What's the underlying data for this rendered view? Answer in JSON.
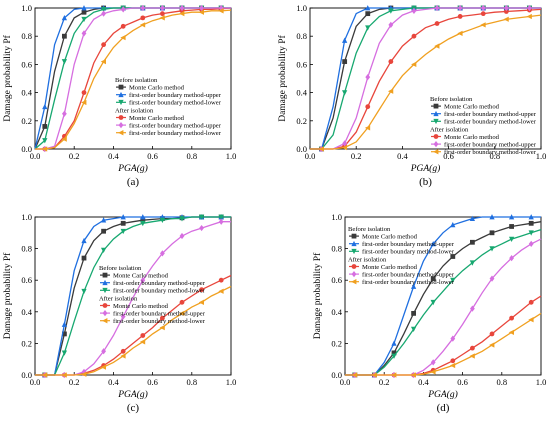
{
  "figure": {
    "panels": [
      {
        "label": "(a)"
      },
      {
        "label": "(b)"
      },
      {
        "label": "(c)"
      },
      {
        "label": "(d)"
      }
    ]
  },
  "chart_data": [
    {
      "type": "line",
      "panel": "(a)",
      "xlabel": "PGA(g)",
      "ylabel": "Damage probability Pf",
      "xlim": [
        0.0,
        1.0
      ],
      "ylim": [
        0.0,
        1.0
      ],
      "xticks": [
        "0.0",
        "0.2",
        "0.4",
        "0.6",
        "0.8",
        "1.0"
      ],
      "yticks": [
        "0.0",
        "0.2",
        "0.4",
        "0.6",
        "0.8",
        "1.0"
      ],
      "legend_position": "center-right",
      "legend_groups": [
        {
          "title": "Before isolation",
          "series": [
            0,
            1,
            2
          ]
        },
        {
          "title": "After isolation",
          "series": [
            3,
            4,
            5
          ]
        }
      ],
      "x": [
        0.0,
        0.05,
        0.1,
        0.15,
        0.2,
        0.25,
        0.3,
        0.35,
        0.4,
        0.45,
        0.5,
        0.55,
        0.6,
        0.65,
        0.7,
        0.75,
        0.8,
        0.85,
        0.9,
        0.95,
        1.0
      ],
      "series": [
        {
          "name": "Monte Carlo method",
          "color": "#3a3a3a",
          "marker": "square",
          "values": [
            0.0,
            0.16,
            0.55,
            0.8,
            0.93,
            0.97,
            0.99,
            1.0,
            1.0,
            1.0,
            1.0,
            1.0,
            1.0,
            1.0,
            1.0,
            1.0,
            1.0,
            1.0,
            1.0,
            1.0,
            1.0
          ]
        },
        {
          "name": "first-order boundary method-upper",
          "color": "#1f6fe0",
          "marker": "triangle-up",
          "values": [
            0.0,
            0.3,
            0.74,
            0.93,
            0.99,
            1.0,
            1.0,
            1.0,
            1.0,
            1.0,
            1.0,
            1.0,
            1.0,
            1.0,
            1.0,
            1.0,
            1.0,
            1.0,
            1.0,
            1.0,
            1.0
          ]
        },
        {
          "name": "first-order boundary method-lower",
          "color": "#17a870",
          "marker": "triangle-down",
          "values": [
            0.0,
            0.06,
            0.35,
            0.62,
            0.82,
            0.92,
            0.97,
            0.99,
            1.0,
            1.0,
            1.0,
            1.0,
            1.0,
            1.0,
            1.0,
            1.0,
            1.0,
            1.0,
            1.0,
            1.0,
            1.0
          ]
        },
        {
          "name": "Monte Carlo method",
          "color": "#e8463c",
          "marker": "circle",
          "values": [
            0.0,
            0.0,
            0.01,
            0.09,
            0.2,
            0.4,
            0.61,
            0.74,
            0.82,
            0.87,
            0.9,
            0.93,
            0.95,
            0.96,
            0.97,
            0.98,
            0.985,
            0.99,
            0.99,
            0.995,
            1.0
          ]
        },
        {
          "name": "first-order boundary method-upper",
          "color": "#d66ee0",
          "marker": "diamond",
          "values": [
            0.0,
            0.0,
            0.02,
            0.25,
            0.6,
            0.82,
            0.92,
            0.96,
            0.98,
            0.99,
            1.0,
            1.0,
            1.0,
            1.0,
            1.0,
            1.0,
            1.0,
            1.0,
            1.0,
            1.0,
            1.0
          ]
        },
        {
          "name": "first-order boundary method-lower",
          "color": "#f0a020",
          "marker": "triangle-left",
          "values": [
            0.0,
            0.0,
            0.01,
            0.07,
            0.18,
            0.33,
            0.5,
            0.62,
            0.72,
            0.79,
            0.84,
            0.88,
            0.91,
            0.93,
            0.95,
            0.96,
            0.97,
            0.97,
            0.98,
            0.98,
            0.985
          ]
        }
      ]
    },
    {
      "type": "line",
      "panel": "(b)",
      "xlabel": "PGA(g)",
      "ylabel": "Damage probability Pf",
      "xlim": [
        0.0,
        1.0
      ],
      "ylim": [
        0.0,
        1.0
      ],
      "xticks": [
        "0.0",
        "0.2",
        "0.4",
        "0.6",
        "0.8",
        "1.0"
      ],
      "yticks": [
        "0.0",
        "0.2",
        "0.4",
        "0.6",
        "0.8",
        "1.0"
      ],
      "legend_position": "bottom-right",
      "legend_groups": [
        {
          "title": "Before isolation",
          "series": [
            0,
            1,
            2
          ]
        },
        {
          "title": "After isolation",
          "series": [
            3,
            4,
            5
          ]
        }
      ],
      "x": [
        0.0,
        0.05,
        0.1,
        0.15,
        0.2,
        0.25,
        0.3,
        0.35,
        0.4,
        0.45,
        0.5,
        0.55,
        0.6,
        0.65,
        0.7,
        0.75,
        0.8,
        0.85,
        0.9,
        0.95,
        1.0
      ],
      "series": [
        {
          "name": "Monte Carlo method",
          "color": "#3a3a3a",
          "marker": "square",
          "values": [
            0.0,
            0.0,
            0.22,
            0.62,
            0.87,
            0.96,
            0.99,
            1.0,
            1.0,
            1.0,
            1.0,
            1.0,
            1.0,
            1.0,
            1.0,
            1.0,
            1.0,
            1.0,
            1.0,
            1.0,
            1.0
          ]
        },
        {
          "name": "first-order boundary method-upper",
          "color": "#1f6fe0",
          "marker": "triangle-up",
          "values": [
            0.0,
            0.0,
            0.3,
            0.77,
            0.96,
            1.0,
            1.0,
            1.0,
            1.0,
            1.0,
            1.0,
            1.0,
            1.0,
            1.0,
            1.0,
            1.0,
            1.0,
            1.0,
            1.0,
            1.0,
            1.0
          ]
        },
        {
          "name": "first-order boundary method-lower",
          "color": "#17a870",
          "marker": "triangle-down",
          "values": [
            0.0,
            0.0,
            0.1,
            0.4,
            0.68,
            0.86,
            0.94,
            0.98,
            0.99,
            1.0,
            1.0,
            1.0,
            1.0,
            1.0,
            1.0,
            1.0,
            1.0,
            1.0,
            1.0,
            1.0,
            1.0
          ]
        },
        {
          "name": "Monte Carlo method",
          "color": "#e8463c",
          "marker": "circle",
          "values": [
            0.0,
            0.0,
            0.0,
            0.02,
            0.12,
            0.3,
            0.48,
            0.62,
            0.73,
            0.8,
            0.86,
            0.89,
            0.92,
            0.94,
            0.95,
            0.96,
            0.97,
            0.975,
            0.98,
            0.985,
            0.99
          ]
        },
        {
          "name": "first-order boundary method-upper",
          "color": "#d66ee0",
          "marker": "diamond",
          "values": [
            0.0,
            0.0,
            0.0,
            0.04,
            0.22,
            0.51,
            0.75,
            0.88,
            0.95,
            0.98,
            0.99,
            1.0,
            1.0,
            1.0,
            1.0,
            1.0,
            1.0,
            1.0,
            1.0,
            1.0,
            1.0
          ]
        },
        {
          "name": "first-order boundary method-lower",
          "color": "#f0a020",
          "marker": "triangle-left",
          "values": [
            0.0,
            0.0,
            0.0,
            0.01,
            0.05,
            0.15,
            0.28,
            0.41,
            0.52,
            0.6,
            0.67,
            0.73,
            0.78,
            0.82,
            0.85,
            0.88,
            0.9,
            0.92,
            0.93,
            0.94,
            0.95
          ]
        }
      ]
    },
    {
      "type": "line",
      "panel": "(c)",
      "xlabel": "PGA(g)",
      "ylabel": "Damage probability Pf",
      "xlim": [
        0.0,
        1.0
      ],
      "ylim": [
        0.0,
        1.0
      ],
      "xticks": [
        "0.0",
        "0.2",
        "0.4",
        "0.6",
        "0.8",
        "1.0"
      ],
      "yticks": [
        "0.0",
        "0.2",
        "0.4",
        "0.6",
        "0.8",
        "1.0"
      ],
      "legend_position": "center-right",
      "legend_groups": [
        {
          "title": "Before isolation",
          "series": [
            0,
            1,
            2
          ]
        },
        {
          "title": "After isolation",
          "series": [
            3,
            4,
            5
          ]
        }
      ],
      "x": [
        0.0,
        0.05,
        0.1,
        0.15,
        0.2,
        0.25,
        0.3,
        0.35,
        0.4,
        0.45,
        0.5,
        0.55,
        0.6,
        0.65,
        0.7,
        0.75,
        0.8,
        0.85,
        0.9,
        0.95,
        1.0
      ],
      "series": [
        {
          "name": "Monte Carlo method",
          "color": "#3a3a3a",
          "marker": "square",
          "values": [
            0.0,
            0.0,
            0.0,
            0.26,
            0.55,
            0.74,
            0.85,
            0.91,
            0.94,
            0.96,
            0.97,
            0.98,
            0.985,
            0.99,
            0.99,
            0.995,
            1.0,
            1.0,
            1.0,
            1.0,
            1.0
          ]
        },
        {
          "name": "first-order boundary method-upper",
          "color": "#1f6fe0",
          "marker": "triangle-up",
          "values": [
            0.0,
            0.0,
            0.0,
            0.32,
            0.66,
            0.85,
            0.94,
            0.98,
            0.99,
            1.0,
            1.0,
            1.0,
            1.0,
            1.0,
            1.0,
            1.0,
            1.0,
            1.0,
            1.0,
            1.0,
            1.0
          ]
        },
        {
          "name": "first-order boundary method-lower",
          "color": "#17a870",
          "marker": "triangle-down",
          "values": [
            0.0,
            0.0,
            0.0,
            0.14,
            0.34,
            0.53,
            0.68,
            0.79,
            0.86,
            0.91,
            0.94,
            0.96,
            0.97,
            0.98,
            0.99,
            0.99,
            1.0,
            1.0,
            1.0,
            1.0,
            1.0
          ]
        },
        {
          "name": "Monte Carlo method",
          "color": "#e8463c",
          "marker": "circle",
          "values": [
            0.0,
            0.0,
            0.0,
            0.0,
            0.0,
            0.01,
            0.03,
            0.06,
            0.1,
            0.15,
            0.2,
            0.25,
            0.3,
            0.36,
            0.41,
            0.46,
            0.5,
            0.54,
            0.57,
            0.6,
            0.63
          ]
        },
        {
          "name": "first-order boundary method-upper",
          "color": "#d66ee0",
          "marker": "diamond",
          "values": [
            0.0,
            0.0,
            0.0,
            0.0,
            0.0,
            0.02,
            0.07,
            0.15,
            0.25,
            0.37,
            0.49,
            0.6,
            0.69,
            0.77,
            0.83,
            0.88,
            0.91,
            0.93,
            0.95,
            0.97,
            0.97
          ]
        },
        {
          "name": "first-order boundary method-lower",
          "color": "#f0a020",
          "marker": "triangle-left",
          "values": [
            0.0,
            0.0,
            0.0,
            0.0,
            0.0,
            0.005,
            0.02,
            0.05,
            0.08,
            0.12,
            0.17,
            0.21,
            0.26,
            0.3,
            0.35,
            0.39,
            0.43,
            0.46,
            0.5,
            0.53,
            0.56
          ]
        }
      ]
    },
    {
      "type": "line",
      "panel": "(d)",
      "xlabel": "PGA(g)",
      "ylabel": "Damage probability Pf",
      "xlim": [
        0.0,
        1.0
      ],
      "ylim": [
        0.0,
        1.0
      ],
      "xticks": [
        "0.0",
        "0.2",
        "0.4",
        "0.6",
        "0.8",
        "1.0"
      ],
      "yticks": [
        "0.0",
        "0.2",
        "0.4",
        "0.6",
        "0.8",
        "1.0"
      ],
      "legend_position": "top-left",
      "legend_groups": [
        {
          "title": "Before isolation",
          "series": [
            0,
            1,
            2
          ]
        },
        {
          "title": "After isolation",
          "series": [
            3,
            4,
            5
          ]
        }
      ],
      "x": [
        0.0,
        0.05,
        0.1,
        0.15,
        0.2,
        0.25,
        0.3,
        0.35,
        0.4,
        0.45,
        0.5,
        0.55,
        0.6,
        0.65,
        0.7,
        0.75,
        0.8,
        0.85,
        0.9,
        0.95,
        1.0
      ],
      "series": [
        {
          "name": "Monte Carlo method",
          "color": "#3a3a3a",
          "marker": "square",
          "values": [
            0.0,
            0.0,
            0.0,
            0.0,
            0.06,
            0.14,
            0.26,
            0.39,
            0.51,
            0.61,
            0.69,
            0.75,
            0.8,
            0.84,
            0.87,
            0.9,
            0.92,
            0.94,
            0.95,
            0.96,
            0.97
          ]
        },
        {
          "name": "first-order boundary method-upper",
          "color": "#1f6fe0",
          "marker": "triangle-up",
          "values": [
            0.0,
            0.0,
            0.0,
            0.0,
            0.08,
            0.2,
            0.38,
            0.56,
            0.72,
            0.83,
            0.9,
            0.95,
            0.97,
            0.99,
            1.0,
            1.0,
            1.0,
            1.0,
            1.0,
            1.0,
            1.0
          ]
        },
        {
          "name": "first-order boundary method-lower",
          "color": "#17a870",
          "marker": "triangle-down",
          "values": [
            0.0,
            0.0,
            0.0,
            0.0,
            0.05,
            0.12,
            0.2,
            0.29,
            0.38,
            0.46,
            0.53,
            0.6,
            0.66,
            0.71,
            0.76,
            0.8,
            0.83,
            0.86,
            0.88,
            0.9,
            0.92
          ]
        },
        {
          "name": "Monte Carlo method",
          "color": "#e8463c",
          "marker": "circle",
          "values": [
            0.0,
            0.0,
            0.0,
            0.0,
            0.0,
            0.0,
            0.0,
            0.0,
            0.01,
            0.03,
            0.06,
            0.09,
            0.13,
            0.17,
            0.21,
            0.26,
            0.31,
            0.36,
            0.41,
            0.46,
            0.5
          ]
        },
        {
          "name": "first-order boundary method-upper",
          "color": "#d66ee0",
          "marker": "diamond",
          "values": [
            0.0,
            0.0,
            0.0,
            0.0,
            0.0,
            0.0,
            0.0,
            0.0,
            0.03,
            0.08,
            0.15,
            0.23,
            0.32,
            0.42,
            0.52,
            0.61,
            0.68,
            0.74,
            0.79,
            0.83,
            0.86
          ]
        },
        {
          "name": "first-order boundary method-lower",
          "color": "#f0a020",
          "marker": "triangle-left",
          "values": [
            0.0,
            0.0,
            0.0,
            0.0,
            0.0,
            0.0,
            0.0,
            0.0,
            0.005,
            0.02,
            0.04,
            0.06,
            0.09,
            0.12,
            0.15,
            0.19,
            0.23,
            0.27,
            0.31,
            0.35,
            0.39
          ]
        }
      ]
    }
  ]
}
